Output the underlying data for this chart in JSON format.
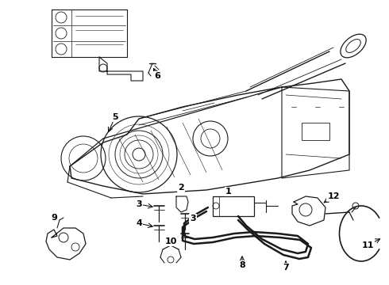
{
  "bg_color": "#ffffff",
  "line_color": "#1a1a1a",
  "label_color": "#000000",
  "lw": 0.7,
  "fig_w": 4.9,
  "fig_h": 3.6,
  "dpi": 100
}
